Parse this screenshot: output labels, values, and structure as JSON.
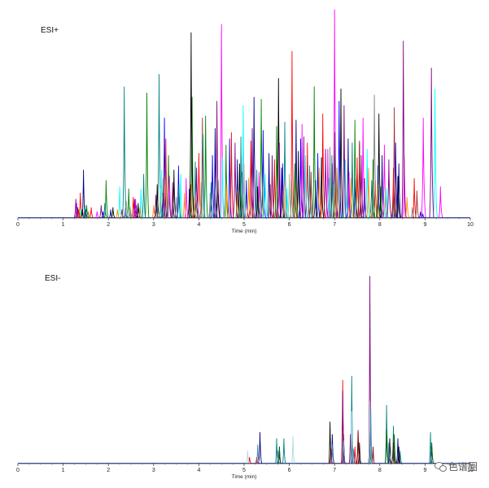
{
  "chart_data": [
    {
      "type": "line",
      "panel_label": "ESI+",
      "xlabel": "Time (min)",
      "xlim": [
        0,
        10
      ],
      "x_ticks": [
        "0",
        "1",
        "2",
        "3",
        "4",
        "5",
        "6",
        "7",
        "8",
        "9",
        "10"
      ],
      "ylim": [
        0,
        100
      ],
      "grid": false,
      "peak_width_min": 0.04,
      "series": [
        {
          "color": "#00008b",
          "peaks": [
            [
              1.32,
              5
            ],
            [
              1.45,
              23
            ],
            [
              2.05,
              4
            ],
            [
              2.62,
              6
            ],
            [
              3.2,
              10
            ],
            [
              3.79,
              14
            ],
            [
              4.36,
              43
            ],
            [
              4.85,
              28
            ],
            [
              5.22,
              58
            ],
            [
              5.55,
              31
            ],
            [
              5.83,
              24
            ],
            [
              6.15,
              47
            ],
            [
              6.58,
              18
            ],
            [
              6.95,
              26
            ],
            [
              7.3,
              38
            ],
            [
              7.66,
              19
            ],
            [
              8.05,
              30
            ],
            [
              8.42,
              26
            ],
            [
              8.9,
              3
            ]
          ]
        },
        {
          "color": "#0000ff",
          "peaks": [
            [
              1.5,
              4
            ],
            [
              1.88,
              3
            ],
            [
              2.38,
              5
            ],
            [
              3.2,
              12
            ],
            [
              3.24,
              48
            ],
            [
              3.55,
              25
            ],
            [
              4.3,
              30
            ],
            [
              4.68,
              38
            ],
            [
              5.05,
              18
            ],
            [
              5.42,
              42
            ],
            [
              5.85,
              26
            ],
            [
              6.25,
              38
            ],
            [
              6.63,
              31
            ],
            [
              7.1,
              56
            ],
            [
              7.46,
              19
            ],
            [
              7.96,
              25
            ],
            [
              8.35,
              36
            ],
            [
              8.95,
              2
            ]
          ]
        },
        {
          "color": "#ff0000",
          "peaks": [
            [
              1.38,
              12
            ],
            [
              1.62,
              5
            ],
            [
              2.3,
              4
            ],
            [
              2.55,
              10
            ],
            [
              3.27,
              38
            ],
            [
              3.82,
              16
            ],
            [
              4.0,
              31
            ],
            [
              4.72,
              41
            ],
            [
              5.15,
              37
            ],
            [
              5.67,
              28
            ],
            [
              6.06,
              80
            ],
            [
              6.4,
              36
            ],
            [
              6.74,
              50
            ],
            [
              7.02,
              26
            ],
            [
              7.5,
              29
            ],
            [
              7.9,
              18
            ],
            [
              8.3,
              24
            ],
            [
              8.76,
              19
            ]
          ]
        },
        {
          "color": "#008000",
          "peaks": [
            [
              1.52,
              6
            ],
            [
              1.95,
              18
            ],
            [
              2.45,
              14
            ],
            [
              2.85,
              60
            ],
            [
              3.33,
              30
            ],
            [
              3.85,
              58
            ],
            [
              4.15,
              49
            ],
            [
              4.6,
              35
            ],
            [
              4.95,
              22
            ],
            [
              5.38,
              57
            ],
            [
              5.72,
              44
            ],
            [
              6.12,
              26
            ],
            [
              6.55,
              63
            ],
            [
              7.0,
              41
            ],
            [
              7.45,
              47
            ],
            [
              7.85,
              28
            ],
            [
              8.02,
              15
            ]
          ]
        },
        {
          "color": "#ff00ff",
          "peaks": [
            [
              1.3,
              7
            ],
            [
              1.75,
              3
            ],
            [
              2.6,
              9
            ],
            [
              3.35,
              20
            ],
            [
              3.72,
              19
            ],
            [
              4.5,
              93
            ],
            [
              4.97,
              30
            ],
            [
              5.33,
              22
            ],
            [
              5.78,
              36
            ],
            [
              6.28,
              45
            ],
            [
              6.85,
              33
            ],
            [
              7.0,
              100
            ],
            [
              7.32,
              22
            ],
            [
              7.63,
              48
            ],
            [
              8.1,
              35
            ],
            [
              8.54,
              30
            ],
            [
              8.96,
              48
            ],
            [
              9.34,
              15
            ]
          ]
        },
        {
          "color": "#00ffff",
          "peaks": [
            [
              1.4,
              4
            ],
            [
              2.25,
              15
            ],
            [
              2.72,
              14
            ],
            [
              3.18,
              23
            ],
            [
              3.6,
              21
            ],
            [
              4.1,
              40
            ],
            [
              4.52,
              29
            ],
            [
              4.98,
              54
            ],
            [
              5.47,
              21
            ],
            [
              5.95,
              14
            ],
            [
              6.36,
              30
            ],
            [
              6.88,
              19
            ],
            [
              7.24,
              28
            ],
            [
              7.72,
              33
            ],
            [
              8.15,
              14
            ],
            [
              9.22,
              62
            ]
          ]
        },
        {
          "color": "#008080",
          "peaks": [
            [
              1.48,
              6
            ],
            [
              1.92,
              7
            ],
            [
              2.35,
              63
            ],
            [
              2.78,
              21
            ],
            [
              3.12,
              69
            ],
            [
              3.56,
              16
            ],
            [
              3.92,
              27
            ],
            [
              4.27,
              17
            ],
            [
              4.93,
              39
            ],
            [
              5.28,
              23
            ],
            [
              5.9,
              46
            ],
            [
              6.45,
              25
            ],
            [
              6.94,
              30
            ],
            [
              7.39,
              36
            ],
            [
              7.82,
              18
            ],
            [
              8.3,
              10
            ]
          ]
        },
        {
          "color": "#800080",
          "peaks": [
            [
              1.28,
              9
            ],
            [
              1.84,
              6
            ],
            [
              2.58,
              9
            ],
            [
              3.05,
              11
            ],
            [
              3.42,
              17
            ],
            [
              3.95,
              24
            ],
            [
              4.4,
              56
            ],
            [
              4.8,
              36
            ],
            [
              5.18,
              43
            ],
            [
              5.62,
              30
            ],
            [
              6.32,
              39
            ],
            [
              6.8,
              33
            ],
            [
              7.21,
              54
            ],
            [
              7.59,
              30
            ],
            [
              8.2,
              28
            ],
            [
              8.52,
              85
            ],
            [
              9.14,
              72
            ]
          ]
        },
        {
          "color": "#000000",
          "peaks": [
            [
              1.42,
              4
            ],
            [
              2.1,
              5
            ],
            [
              2.66,
              7
            ],
            [
              3.08,
              16
            ],
            [
              3.45,
              23
            ],
            [
              3.83,
              89
            ],
            [
              4.42,
              18
            ],
            [
              4.9,
              26
            ],
            [
              5.3,
              15
            ],
            [
              5.76,
              67
            ],
            [
              6.2,
              32
            ],
            [
              6.71,
              29
            ],
            [
              7.14,
              62
            ],
            [
              7.55,
              36
            ],
            [
              7.98,
              50
            ],
            [
              8.4,
              20
            ]
          ]
        },
        {
          "color": "#ff8c00",
          "peaks": [
            [
              1.36,
              5
            ],
            [
              2.2,
              4
            ],
            [
              3.0,
              6
            ],
            [
              3.68,
              12
            ],
            [
              4.62,
              16
            ],
            [
              5.1,
              19
            ],
            [
              5.88,
              16
            ],
            [
              6.66,
              24
            ],
            [
              7.36,
              19
            ],
            [
              7.75,
              24
            ],
            [
              8.6,
              10
            ]
          ]
        },
        {
          "color": "#808080",
          "peaks": [
            [
              1.46,
              3
            ],
            [
              2.48,
              5
            ],
            [
              3.5,
              10
            ],
            [
              4.25,
              12
            ],
            [
              5.36,
              20
            ],
            [
              6.05,
              18
            ],
            [
              6.9,
              34
            ],
            [
              7.88,
              59
            ],
            [
              8.72,
              5
            ]
          ]
        },
        {
          "color": "#8fbc8f",
          "peaks": [
            [
              2.4,
              8
            ],
            [
              3.15,
              14
            ],
            [
              4.05,
              17
            ],
            [
              5.0,
              26
            ],
            [
              6.0,
              21
            ],
            [
              6.98,
              16
            ],
            [
              8.12,
              14
            ]
          ]
        },
        {
          "color": "#a52a2a",
          "peaks": [
            [
              1.34,
              4
            ],
            [
              3.22,
              19
            ],
            [
              4.08,
              48
            ],
            [
              5.58,
              16
            ],
            [
              6.48,
              22
            ],
            [
              7.55,
              37
            ],
            [
              8.32,
              53
            ],
            [
              8.82,
              13
            ]
          ]
        },
        {
          "color": "#b8860b",
          "peaks": [
            [
              1.56,
              3
            ],
            [
              2.7,
              5
            ],
            [
              3.9,
              10
            ],
            [
              4.85,
              13
            ],
            [
              6.15,
              17
            ],
            [
              7.05,
              24
            ],
            [
              7.95,
              16
            ]
          ]
        }
      ]
    },
    {
      "type": "line",
      "panel_label": "ESI-",
      "xlabel": "Time (min)",
      "xlim": [
        0,
        10
      ],
      "x_ticks": [
        "0",
        "1",
        "2",
        "3",
        "4",
        "5",
        "6",
        "7",
        "8",
        "9",
        "10"
      ],
      "ylim": [
        0,
        100
      ],
      "grid": false,
      "peak_width_min": 0.03,
      "series": [
        {
          "color": "#ff0000",
          "peaks": [
            [
              5.12,
              3
            ],
            [
              5.28,
              3
            ],
            [
              5.78,
              5
            ],
            [
              6.92,
              7
            ],
            [
              7.18,
              40
            ],
            [
              7.45,
              8
            ],
            [
              7.78,
              9
            ],
            [
              8.22,
              6
            ],
            [
              8.42,
              5
            ]
          ]
        },
        {
          "color": "#800080",
          "peaks": [
            [
              7.18,
              35
            ],
            [
              7.35,
              14
            ],
            [
              7.52,
              16
            ],
            [
              7.78,
              90
            ],
            [
              8.2,
              8
            ],
            [
              8.3,
              6
            ]
          ]
        },
        {
          "color": "#008080",
          "peaks": [
            [
              5.72,
              12
            ],
            [
              5.88,
              12
            ],
            [
              7.38,
              42
            ],
            [
              7.78,
              15
            ],
            [
              8.15,
              28
            ],
            [
              8.3,
              18
            ],
            [
              8.45,
              6
            ],
            [
              9.12,
              15
            ]
          ]
        },
        {
          "color": "#000000",
          "peaks": [
            [
              6.9,
              20
            ],
            [
              7.2,
              12
            ],
            [
              7.55,
              10
            ],
            [
              7.78,
              22
            ],
            [
              8.22,
              12
            ],
            [
              8.42,
              8
            ]
          ]
        },
        {
          "color": "#000080",
          "peaks": [
            [
              5.35,
              15
            ],
            [
              5.78,
              8
            ],
            [
              6.95,
              14
            ],
            [
              7.38,
              11
            ],
            [
              7.78,
              20
            ],
            [
              8.4,
              12
            ],
            [
              9.15,
              8
            ]
          ]
        },
        {
          "color": "#8b0000",
          "peaks": [
            [
              7.2,
              14
            ],
            [
              7.52,
              15
            ],
            [
              7.85,
              8
            ],
            [
              8.3,
              10
            ]
          ]
        },
        {
          "color": "#006400",
          "peaks": [
            [
              5.78,
              8
            ],
            [
              7.38,
              18
            ],
            [
              7.78,
              20
            ],
            [
              8.15,
              16
            ],
            [
              8.32,
              14
            ],
            [
              9.15,
              10
            ]
          ]
        },
        {
          "color": "#add8e6",
          "peaks": [
            [
              5.08,
              6
            ],
            [
              6.08,
              13
            ],
            [
              7.38,
              25
            ],
            [
              7.78,
              30
            ],
            [
              8.25,
              8
            ]
          ]
        },
        {
          "color": "#4682b4",
          "peaks": [
            [
              5.3,
              9
            ],
            [
              5.75,
              6
            ],
            [
              6.95,
              9
            ],
            [
              7.2,
              11
            ],
            [
              7.42,
              7
            ],
            [
              7.8,
              26
            ],
            [
              8.2,
              10
            ],
            [
              9.12,
              6
            ]
          ]
        }
      ]
    }
  ],
  "watermark": {
    "text": "色谱圈",
    "icon": "wechat-icon"
  }
}
